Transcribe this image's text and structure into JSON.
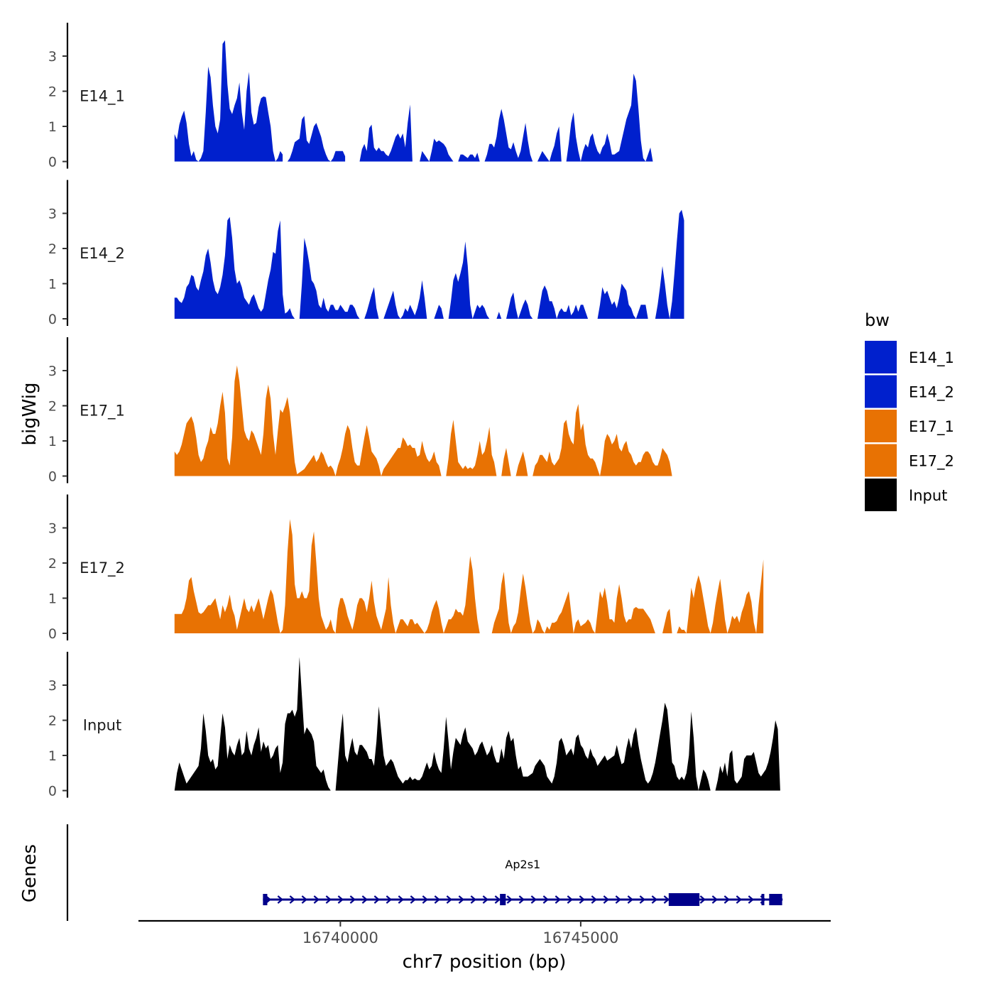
{
  "chart_data": {
    "type": "area",
    "title": "",
    "xlabel": "chr7 position (bp)",
    "ylabel": "bigWig",
    "gene_panel_label": "Genes",
    "xlim": [
      16735800,
      16750200
    ],
    "ylim": [
      0,
      3.95
    ],
    "x_ticks": [
      16740000,
      16745000
    ],
    "x_tick_labels": [
      "16740000",
      "16745000"
    ],
    "y_ticks": [
      0,
      1,
      2,
      3
    ],
    "y_tick_labels": [
      "0",
      "1",
      "2",
      "3"
    ],
    "x_start": 16736550,
    "x_step": 50,
    "legend": {
      "title": "bw",
      "entries": [
        {
          "label": "E14_1",
          "color": "#0020CD"
        },
        {
          "label": "E14_2",
          "color": "#0020CD"
        },
        {
          "label": "E17_1",
          "color": "#E87203"
        },
        {
          "label": "E17_2",
          "color": "#E87203"
        },
        {
          "label": "Input",
          "color": "#000000"
        }
      ]
    },
    "series": [
      {
        "name": "E14_1",
        "color": "#0020CD",
        "values": [
          0.78,
          0.62,
          1.05,
          1.28,
          1.45,
          1.1,
          0.5,
          0.15,
          0.3,
          0.05,
          0.0,
          0.1,
          0.3,
          1.4,
          2.7,
          2.4,
          1.6,
          1.0,
          0.8,
          1.2,
          3.35,
          3.45,
          2.2,
          1.5,
          1.35,
          1.6,
          1.8,
          2.25,
          1.4,
          0.9,
          2.0,
          2.55,
          1.4,
          1.05,
          1.1,
          1.55,
          1.8,
          1.85,
          1.83,
          1.4,
          1.0,
          0.3,
          0.0,
          0.1,
          0.3,
          0.2,
          null,
          0.0,
          0.1,
          0.3,
          0.55,
          0.6,
          0.65,
          1.2,
          1.3,
          0.6,
          0.5,
          0.75,
          1.0,
          1.1,
          0.9,
          0.7,
          0.4,
          0.2,
          0.05,
          0.0,
          0.1,
          0.3,
          0.3,
          0.3,
          0.3,
          0.15,
          null,
          null,
          null,
          null,
          null,
          0.0,
          0.35,
          0.5,
          0.3,
          0.95,
          1.05,
          0.4,
          0.3,
          0.4,
          0.3,
          0.3,
          0.2,
          0.15,
          0.3,
          0.5,
          0.7,
          0.8,
          0.65,
          0.8,
          0.4,
          1.1,
          1.62,
          0.0,
          null,
          null,
          0.0,
          0.3,
          0.2,
          0.1,
          0.0,
          0.3,
          0.65,
          0.55,
          0.6,
          0.55,
          0.5,
          0.4,
          0.2,
          0.1,
          0.0,
          null,
          0.0,
          0.2,
          0.2,
          0.15,
          0.1,
          0.2,
          0.2,
          0.1,
          0.25,
          0.0,
          null,
          0.0,
          0.2,
          0.5,
          0.5,
          0.4,
          0.7,
          1.2,
          1.5,
          1.2,
          0.8,
          0.4,
          0.35,
          0.55,
          0.3,
          0.1,
          0.3,
          0.7,
          1.1,
          0.6,
          0.2,
          0.0,
          null,
          0.0,
          0.15,
          0.3,
          0.2,
          0.1,
          0.0,
          0.25,
          0.45,
          0.8,
          1.0,
          0.0,
          null,
          0.0,
          0.5,
          1.1,
          1.4,
          0.7,
          0.3,
          0.0,
          0.3,
          0.5,
          0.4,
          0.7,
          0.8,
          0.5,
          0.3,
          0.2,
          0.4,
          0.5,
          0.8,
          0.55,
          0.2,
          0.2,
          0.25,
          0.3,
          0.6,
          0.9,
          1.2,
          1.4,
          1.6,
          2.5,
          2.3,
          1.5,
          0.6,
          0.1,
          0.0,
          0.2,
          0.4,
          0.0
        ]
      },
      {
        "name": "E14_2",
        "color": "#0020CD",
        "values": [
          0.6,
          0.6,
          0.5,
          0.45,
          0.6,
          0.9,
          1.0,
          1.25,
          1.2,
          0.9,
          0.8,
          1.1,
          1.35,
          1.8,
          2.0,
          1.6,
          1.1,
          0.8,
          0.7,
          0.9,
          1.25,
          1.8,
          2.8,
          2.9,
          2.3,
          1.4,
          1.0,
          1.1,
          0.9,
          0.6,
          0.5,
          0.4,
          0.6,
          0.7,
          0.5,
          0.3,
          0.2,
          0.3,
          0.7,
          1.1,
          1.4,
          1.9,
          1.85,
          2.5,
          2.8,
          0.7,
          0.15,
          0.2,
          0.3,
          0.1,
          0.0,
          null,
          0.0,
          1.0,
          2.3,
          2.0,
          1.6,
          1.1,
          1.0,
          0.8,
          0.4,
          0.3,
          0.6,
          0.3,
          0.2,
          0.4,
          0.4,
          0.25,
          0.25,
          0.4,
          0.3,
          0.2,
          0.2,
          0.4,
          0.4,
          0.3,
          0.1,
          0.0,
          null,
          0.0,
          0.2,
          0.45,
          0.7,
          0.9,
          0.3,
          0.0,
          null,
          0.0,
          0.2,
          0.4,
          0.6,
          0.8,
          0.4,
          0.1,
          0.0,
          0.1,
          0.3,
          0.2,
          0.4,
          0.25,
          0.1,
          0.3,
          0.6,
          1.1,
          0.6,
          0.0,
          null,
          null,
          0.0,
          0.2,
          0.4,
          0.3,
          0.0,
          null,
          0.0,
          0.5,
          1.1,
          1.3,
          1.05,
          1.3,
          1.6,
          2.2,
          1.5,
          0.4,
          0.0,
          0.2,
          0.4,
          0.3,
          0.4,
          0.3,
          0.1,
          0.0,
          null,
          null,
          0.0,
          0.2,
          0.0,
          null,
          0.0,
          0.3,
          0.6,
          0.75,
          0.3,
          0.0,
          0.2,
          0.4,
          0.55,
          0.4,
          0.1,
          0.0,
          null,
          0.0,
          0.4,
          0.8,
          0.95,
          0.8,
          0.5,
          0.5,
          0.3,
          0.0,
          0.2,
          0.3,
          0.2,
          0.2,
          0.4,
          0.1,
          0.2,
          0.4,
          0.2,
          0.4,
          0.4,
          0.2,
          0.0,
          null,
          null,
          null,
          0.0,
          0.4,
          0.9,
          0.7,
          0.8,
          0.6,
          0.4,
          0.5,
          0.3,
          0.6,
          1.0,
          0.9,
          0.8,
          0.4,
          0.3,
          0.1,
          0.0,
          0.2,
          0.4,
          0.4,
          0.4,
          0.0,
          null,
          null,
          0.0,
          0.4,
          0.9,
          1.5,
          1.0,
          0.4,
          0.0,
          0.5,
          1.3,
          2.2,
          3.0,
          3.1,
          2.8
        ]
      },
      {
        "name": "E17_1",
        "color": "#E87203",
        "values": [
          0.7,
          0.6,
          0.7,
          0.9,
          1.2,
          1.5,
          1.6,
          1.7,
          1.5,
          1.1,
          0.6,
          0.4,
          0.5,
          0.8,
          1.0,
          1.4,
          1.2,
          1.2,
          1.5,
          2.0,
          2.4,
          1.8,
          0.5,
          0.3,
          1.1,
          2.7,
          3.15,
          2.7,
          2.0,
          1.3,
          1.1,
          1.0,
          1.3,
          1.2,
          1.0,
          0.8,
          0.6,
          1.2,
          2.2,
          2.6,
          2.2,
          1.2,
          0.6,
          1.3,
          1.9,
          1.8,
          2.0,
          2.25,
          1.8,
          1.1,
          0.4,
          0.05,
          0.1,
          0.15,
          0.2,
          0.3,
          0.4,
          0.5,
          0.6,
          0.4,
          0.5,
          0.7,
          0.6,
          0.4,
          0.25,
          0.3,
          0.2,
          0.0,
          0.3,
          0.5,
          0.8,
          1.2,
          1.45,
          1.3,
          0.8,
          0.4,
          0.3,
          0.3,
          0.7,
          1.1,
          1.45,
          1.1,
          0.7,
          0.6,
          0.5,
          0.3,
          0.0,
          0.2,
          0.3,
          0.4,
          0.5,
          0.6,
          0.7,
          0.8,
          0.8,
          1.1,
          1.0,
          0.85,
          0.9,
          0.8,
          0.8,
          0.55,
          0.6,
          1.0,
          0.7,
          0.5,
          0.4,
          0.5,
          0.7,
          0.4,
          0.3,
          0.0,
          null,
          0.0,
          0.5,
          1.2,
          1.6,
          1.0,
          0.4,
          0.3,
          0.2,
          0.3,
          0.2,
          0.25,
          0.2,
          0.3,
          0.6,
          1.0,
          0.6,
          0.7,
          1.0,
          1.4,
          0.6,
          0.4,
          0.0,
          null,
          0.0,
          0.5,
          0.8,
          0.4,
          0.0,
          null,
          0.0,
          0.3,
          0.5,
          0.7,
          0.4,
          0.0,
          null,
          0.0,
          0.3,
          0.4,
          0.6,
          0.6,
          0.5,
          0.4,
          0.7,
          0.4,
          0.3,
          0.4,
          0.5,
          0.8,
          1.5,
          1.6,
          1.2,
          1.0,
          0.9,
          1.8,
          2.05,
          1.3,
          1.5,
          0.9,
          0.6,
          0.5,
          0.5,
          0.4,
          0.2,
          0.0,
          0.4,
          1.0,
          1.2,
          1.1,
          0.9,
          1.0,
          1.2,
          0.8,
          0.7,
          0.9,
          1.0,
          0.7,
          0.6,
          0.4,
          0.3,
          0.4,
          0.4,
          0.6,
          0.7,
          0.7,
          0.6,
          0.4,
          0.3,
          0.3,
          0.5,
          0.8,
          0.7,
          0.6,
          0.4,
          0.0
        ]
      },
      {
        "name": "E17_2",
        "color": "#E87203",
        "values": [
          0.55,
          0.55,
          0.55,
          0.55,
          0.7,
          1.0,
          1.5,
          1.6,
          1.2,
          0.9,
          0.6,
          0.55,
          0.6,
          0.7,
          0.8,
          0.8,
          0.9,
          1.0,
          0.7,
          0.4,
          0.8,
          0.6,
          0.8,
          1.1,
          0.7,
          0.5,
          0.1,
          0.4,
          0.7,
          1.0,
          0.7,
          0.6,
          0.8,
          0.6,
          0.8,
          1.0,
          0.7,
          0.4,
          0.7,
          1.0,
          1.25,
          1.1,
          0.7,
          0.3,
          0.0,
          0.1,
          0.8,
          2.3,
          3.25,
          2.8,
          1.4,
          1.0,
          1.0,
          1.2,
          1.0,
          1.0,
          1.2,
          2.5,
          2.9,
          2.0,
          1.0,
          0.5,
          0.3,
          0.1,
          0.2,
          0.4,
          0.1,
          0.0,
          0.7,
          1.0,
          1.0,
          0.8,
          0.5,
          0.3,
          0.1,
          0.4,
          0.8,
          1.0,
          1.0,
          0.9,
          0.6,
          1.0,
          1.5,
          0.9,
          0.5,
          0.3,
          0.1,
          0.4,
          0.7,
          1.6,
          0.8,
          0.3,
          0.0,
          0.2,
          0.4,
          0.4,
          0.3,
          0.2,
          0.4,
          0.4,
          0.25,
          0.3,
          0.2,
          0.1,
          0.0,
          0.1,
          0.3,
          0.6,
          0.8,
          0.95,
          0.7,
          0.3,
          0.0,
          0.2,
          0.4,
          0.4,
          0.5,
          0.7,
          0.6,
          0.6,
          0.5,
          0.8,
          1.5,
          2.2,
          1.8,
          1.0,
          0.4,
          0.0,
          null,
          null,
          null,
          null,
          0.0,
          0.3,
          0.5,
          0.7,
          1.4,
          1.75,
          1.0,
          0.3,
          0.0,
          0.2,
          0.3,
          0.6,
          1.2,
          1.7,
          1.3,
          0.8,
          0.3,
          0.0,
          0.1,
          0.4,
          0.3,
          0.1,
          0.0,
          0.2,
          0.1,
          0.3,
          0.3,
          0.35,
          0.5,
          0.6,
          0.8,
          1.0,
          1.2,
          0.6,
          0.0,
          0.3,
          0.4,
          0.2,
          0.25,
          0.3,
          0.4,
          0.3,
          0.1,
          0.0,
          0.6,
          1.2,
          1.0,
          1.3,
          0.9,
          0.4,
          0.4,
          0.3,
          1.0,
          1.4,
          1.0,
          0.5,
          0.3,
          0.4,
          0.4,
          0.7,
          0.75,
          0.7,
          0.7,
          0.7,
          0.6,
          0.5,
          0.4,
          0.2,
          0.0,
          null,
          null,
          0.0,
          0.3,
          0.6,
          0.7,
          0.0,
          null,
          0.0,
          0.2,
          0.1,
          0.1,
          0.0,
          0.6,
          1.3,
          1.0,
          1.4,
          1.65,
          1.4,
          1.0,
          0.6,
          0.2,
          0.0,
          0.3,
          0.8,
          1.2,
          1.55,
          1.0,
          0.4,
          0.0,
          0.2,
          0.5,
          0.4,
          0.5,
          0.3,
          0.6,
          0.8,
          1.1,
          1.2,
          0.9,
          0.3,
          0.0,
          0.8,
          1.45,
          2.1
        ]
      },
      {
        "name": "Input",
        "color": "#000000",
        "values": [
          0.0,
          0.5,
          0.8,
          0.6,
          0.4,
          0.2,
          0.3,
          0.4,
          0.5,
          0.6,
          0.7,
          1.2,
          2.2,
          1.7,
          1.0,
          0.8,
          0.9,
          0.6,
          0.7,
          1.5,
          2.2,
          1.8,
          0.9,
          1.3,
          1.1,
          1.0,
          1.3,
          1.5,
          1.0,
          1.1,
          1.7,
          1.2,
          1.0,
          1.3,
          1.5,
          1.8,
          1.1,
          1.4,
          1.2,
          1.3,
          0.9,
          1.0,
          1.2,
          1.3,
          0.5,
          0.8,
          1.9,
          2.2,
          2.2,
          2.3,
          2.1,
          2.3,
          3.8,
          2.7,
          1.6,
          1.8,
          1.7,
          1.6,
          1.4,
          0.7,
          0.6,
          0.5,
          0.6,
          0.3,
          0.1,
          0.0,
          null,
          0.0,
          0.8,
          1.6,
          2.2,
          1.0,
          0.8,
          1.2,
          1.5,
          1.1,
          1.0,
          1.3,
          1.3,
          1.2,
          1.1,
          0.9,
          0.9,
          0.7,
          1.4,
          2.4,
          1.7,
          1.0,
          0.7,
          0.8,
          0.9,
          0.8,
          0.6,
          0.4,
          0.3,
          0.2,
          0.3,
          0.3,
          0.4,
          0.3,
          0.35,
          0.3,
          0.3,
          0.4,
          0.6,
          0.8,
          0.6,
          0.7,
          1.1,
          0.8,
          0.6,
          0.5,
          1.2,
          2.1,
          1.4,
          0.6,
          1.1,
          1.5,
          1.4,
          1.3,
          1.6,
          1.8,
          1.4,
          1.3,
          1.2,
          1.0,
          1.1,
          1.3,
          1.4,
          1.2,
          1.0,
          1.1,
          1.3,
          1.0,
          0.8,
          0.8,
          1.2,
          0.9,
          1.5,
          1.7,
          1.4,
          1.5,
          1.0,
          0.6,
          0.7,
          0.4,
          0.4,
          0.4,
          0.45,
          0.5,
          0.7,
          0.8,
          0.9,
          0.8,
          0.7,
          0.4,
          0.3,
          0.2,
          0.4,
          0.8,
          1.4,
          1.5,
          1.3,
          1.0,
          1.1,
          1.2,
          1.0,
          1.5,
          1.6,
          1.3,
          1.2,
          1.0,
          0.9,
          1.2,
          1.0,
          0.9,
          0.7,
          0.8,
          0.9,
          1.0,
          0.85,
          0.9,
          0.95,
          1.0,
          1.3,
          1.0,
          0.75,
          0.8,
          1.2,
          1.5,
          1.2,
          1.6,
          1.8,
          1.3,
          0.9,
          0.6,
          0.3,
          0.2,
          0.3,
          0.5,
          0.8,
          1.2,
          1.6,
          2.0,
          2.5,
          2.3,
          1.6,
          0.8,
          0.7,
          0.4,
          0.3,
          0.4,
          0.3,
          0.5,
          1.0,
          2.25,
          1.5,
          0.4,
          0.0,
          0.3,
          0.6,
          0.5,
          0.3,
          0.0,
          null,
          0.0,
          0.3,
          0.7,
          0.5,
          0.8,
          0.4,
          1.05,
          1.15,
          0.3,
          0.2,
          0.3,
          0.4,
          0.9,
          1.0,
          1.0,
          1.0,
          1.1,
          0.8,
          0.5,
          0.4,
          0.5,
          0.6,
          0.8,
          1.1,
          1.5,
          2.0,
          1.75,
          0.0
        ]
      }
    ],
    "gene": {
      "name": "Ap2s1",
      "strand": "+",
      "start": 16738390,
      "end": 16749200,
      "exons": [
        [
          16738390,
          16738480
        ],
        [
          16743320,
          16743440
        ],
        [
          16746830,
          16747470
        ],
        [
          16748760,
          16748790
        ],
        [
          16748920,
          16749190
        ]
      ]
    }
  }
}
